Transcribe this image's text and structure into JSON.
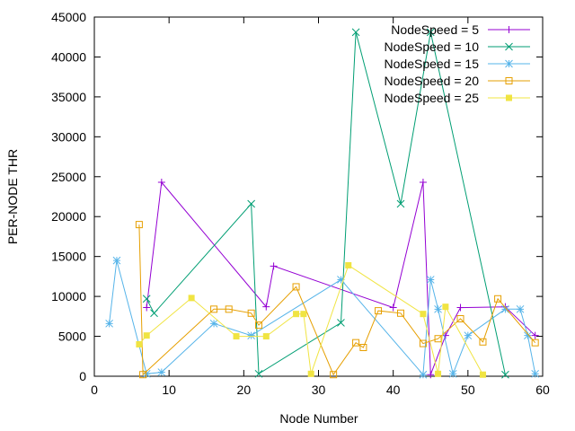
{
  "chart_data": {
    "type": "line",
    "xlabel": "Node Number",
    "ylabel": "PER-NODE THR",
    "xlim": [
      0,
      60
    ],
    "ylim": [
      0,
      45000
    ],
    "xticks": [
      0,
      10,
      20,
      30,
      40,
      50,
      60
    ],
    "yticks": [
      0,
      5000,
      10000,
      15000,
      20000,
      25000,
      30000,
      35000,
      40000,
      45000
    ],
    "grid": false,
    "legend_position": "top-right",
    "series": [
      {
        "name": "NodeSpeed = 5",
        "color": "#9400d3",
        "marker": "plus",
        "points": [
          [
            7,
            8600
          ],
          [
            9,
            24300
          ],
          [
            23,
            8700
          ],
          [
            24,
            13800
          ],
          [
            40,
            8600
          ],
          [
            44,
            24300
          ],
          [
            45,
            200
          ],
          [
            47,
            5100
          ],
          [
            49,
            8600
          ],
          [
            55,
            8700
          ],
          [
            59,
            5100
          ]
        ]
      },
      {
        "name": "NodeSpeed = 10",
        "color": "#009e73",
        "marker": "cross",
        "points": [
          [
            7,
            9700
          ],
          [
            8,
            7900
          ],
          [
            21,
            21600
          ],
          [
            22,
            300
          ],
          [
            33,
            6700
          ],
          [
            35,
            43100
          ],
          [
            41,
            21600
          ],
          [
            45,
            43100
          ],
          [
            55,
            200
          ]
        ]
      },
      {
        "name": "NodeSpeed = 15",
        "color": "#56b4e9",
        "marker": "star",
        "points": [
          [
            2,
            6600
          ],
          [
            3,
            14500
          ],
          [
            7,
            300
          ],
          [
            9,
            500
          ],
          [
            16,
            6600
          ],
          [
            21,
            5100
          ],
          [
            33,
            12100
          ],
          [
            44,
            200
          ],
          [
            45,
            12100
          ],
          [
            46,
            8400
          ],
          [
            48,
            300
          ],
          [
            50,
            5100
          ],
          [
            55,
            8400
          ],
          [
            57,
            8400
          ],
          [
            58,
            5100
          ],
          [
            59,
            300
          ]
        ]
      },
      {
        "name": "NodeSpeed = 20",
        "color": "#e69f00",
        "marker": "box",
        "points": [
          [
            6,
            19000
          ],
          [
            6.5,
            200
          ],
          [
            16,
            8400
          ],
          [
            18,
            8400
          ],
          [
            21,
            7900
          ],
          [
            22,
            6400
          ],
          [
            27,
            11200
          ],
          [
            32,
            200
          ],
          [
            35,
            4200
          ],
          [
            36,
            3600
          ],
          [
            38,
            8200
          ],
          [
            41,
            7900
          ],
          [
            44,
            4100
          ],
          [
            46,
            4700
          ],
          [
            49,
            7200
          ],
          [
            52,
            4300
          ],
          [
            54,
            9700
          ],
          [
            59,
            4200
          ]
        ]
      },
      {
        "name": "NodeSpeed = 25",
        "color": "#f0e442",
        "marker": "filled-box",
        "points": [
          [
            6,
            4000
          ],
          [
            7,
            5100
          ],
          [
            13,
            9800
          ],
          [
            19,
            5000
          ],
          [
            23,
            5000
          ],
          [
            27,
            7800
          ],
          [
            28,
            7800
          ],
          [
            29,
            300
          ],
          [
            34,
            13900
          ],
          [
            44,
            7800
          ],
          [
            46,
            300
          ],
          [
            47,
            8700
          ],
          [
            52,
            200
          ]
        ]
      }
    ]
  }
}
